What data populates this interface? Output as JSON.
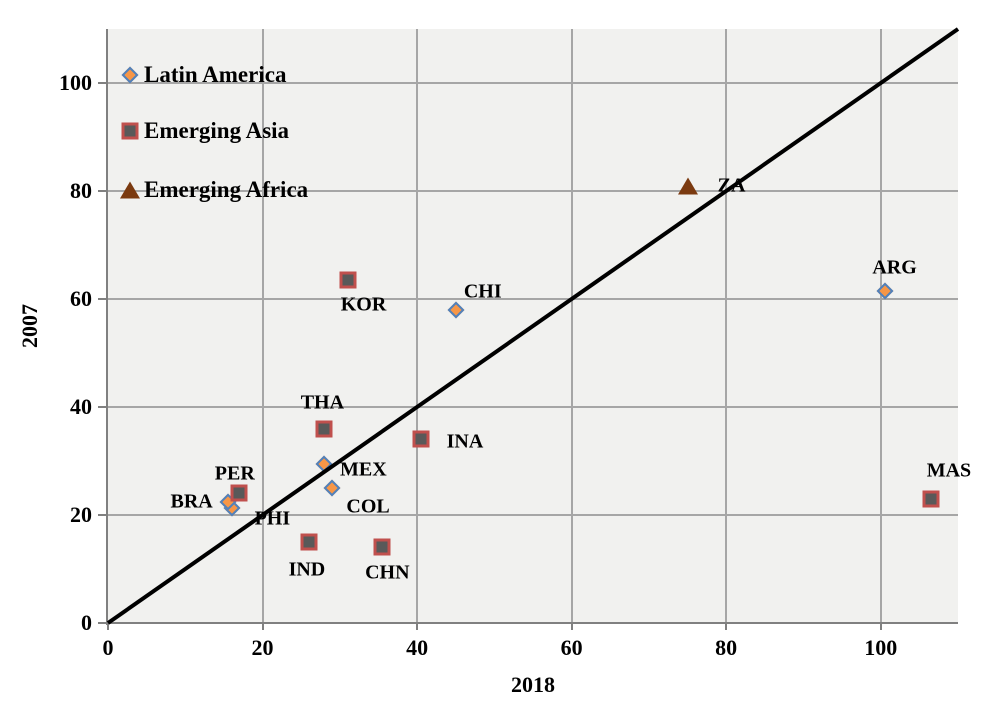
{
  "chart_data": {
    "type": "scatter",
    "title": "",
    "xlabel": "2018",
    "ylabel": "2007",
    "xlim": [
      0,
      110
    ],
    "ylim": [
      0,
      110
    ],
    "xticks": [
      0,
      20,
      40,
      60,
      80,
      100
    ],
    "yticks": [
      0,
      20,
      40,
      60,
      80,
      100
    ],
    "grid": true,
    "plot_bg_color": "#f1f1ef",
    "grid_color": "#a6a6a6",
    "axis_color": "#808080",
    "identity_line": {
      "from": [
        0,
        0
      ],
      "to": [
        110,
        110
      ],
      "color": "#000000",
      "width": 4
    },
    "marker_styles": {
      "diamond": {
        "fill": "#F79646",
        "stroke": "#4F81BD"
      },
      "square": {
        "fill": "#595959",
        "stroke": "#C0504D"
      },
      "triangle": {
        "fill": "#7B3A10"
      }
    },
    "legend": {
      "position": "inside-top-left",
      "items": [
        {
          "label": "Latin America",
          "marker": "diamond"
        },
        {
          "label": "Emerging Asia",
          "marker": "square"
        },
        {
          "label": "Emerging Africa",
          "marker": "triangle"
        }
      ]
    },
    "series": [
      {
        "name": "Latin America",
        "marker": "diamond",
        "points": [
          {
            "label": "BRA",
            "x": 16,
            "y": 21.3,
            "label_dx": -40,
            "label_dy": -6
          },
          {
            "label": "PER",
            "x": 15.5,
            "y": 22.5,
            "label_dx": 7,
            "label_dy": -28
          },
          {
            "label": "MEX",
            "x": 28,
            "y": 29.5,
            "label_dx": 39,
            "label_dy": 6
          },
          {
            "label": "COL",
            "x": 29,
            "y": 25,
            "label_dx": 36,
            "label_dy": 19
          },
          {
            "label": "CHI",
            "x": 45,
            "y": 58,
            "label_dx": 27,
            "label_dy": -18
          },
          {
            "label": "ARG",
            "x": 100.5,
            "y": 61.5,
            "label_dx": 10,
            "label_dy": -23
          }
        ]
      },
      {
        "name": "Emerging Asia",
        "marker": "square",
        "points": [
          {
            "label": "PHI",
            "x": 17,
            "y": 24,
            "label_dx": 33,
            "label_dy": 26
          },
          {
            "label": "IND",
            "x": 26,
            "y": 15,
            "label_dx": -2,
            "label_dy": 28
          },
          {
            "label": "CHN",
            "x": 35.5,
            "y": 14,
            "label_dx": 5,
            "label_dy": 26
          },
          {
            "label": "THA",
            "x": 28,
            "y": 36,
            "label_dx": -2,
            "label_dy": -26
          },
          {
            "label": "KOR",
            "x": 31,
            "y": 63.5,
            "label_dx": 16,
            "label_dy": 25
          },
          {
            "label": "INA",
            "x": 40.5,
            "y": 34,
            "label_dx": 44,
            "label_dy": 3
          },
          {
            "label": "MAS",
            "x": 106.5,
            "y": 23,
            "label_dx": 18,
            "label_dy": -28
          }
        ]
      },
      {
        "name": "Emerging Africa",
        "marker": "triangle",
        "points": [
          {
            "label": "ZA",
            "x": 75,
            "y": 81,
            "label_dx": 44,
            "label_dy": 0
          }
        ]
      }
    ]
  }
}
